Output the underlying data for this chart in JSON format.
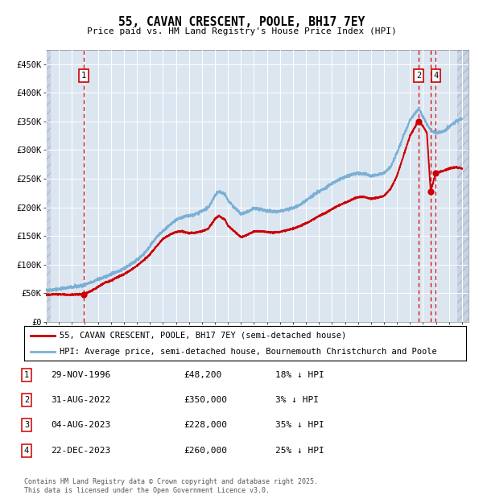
{
  "title": "55, CAVAN CRESCENT, POOLE, BH17 7EY",
  "subtitle": "Price paid vs. HM Land Registry's House Price Index (HPI)",
  "ylim": [
    0,
    475000
  ],
  "xlim_start": 1994.0,
  "xlim_end": 2026.5,
  "yticks": [
    0,
    50000,
    100000,
    150000,
    200000,
    250000,
    300000,
    350000,
    400000,
    450000
  ],
  "ytick_labels": [
    "£0",
    "£50K",
    "£100K",
    "£150K",
    "£200K",
    "£250K",
    "£300K",
    "£350K",
    "£400K",
    "£450K"
  ],
  "sale_color": "#cc0000",
  "hpi_color": "#7ab0d4",
  "plot_bg": "#dce6f1",
  "grid_color": "#ffffff",
  "hatch_bg": "#c8d4e3",
  "sale_points": [
    {
      "year": 1996.91,
      "price": 48200,
      "label": "1"
    },
    {
      "year": 2022.67,
      "price": 350000,
      "label": "2"
    },
    {
      "year": 2023.59,
      "price": 228000,
      "label": "3"
    },
    {
      "year": 2023.98,
      "price": 260000,
      "label": "4"
    }
  ],
  "label_box_positions": {
    "1": [
      1996.91,
      430000
    ],
    "2": [
      2022.67,
      430000
    ],
    "4": [
      2023.98,
      430000
    ]
  },
  "hpi_anchors": [
    [
      1994.0,
      55000
    ],
    [
      1994.5,
      56000
    ],
    [
      1995.0,
      57500
    ],
    [
      1995.5,
      59000
    ],
    [
      1996.0,
      60500
    ],
    [
      1996.5,
      62000
    ],
    [
      1997.0,
      65000
    ],
    [
      1997.5,
      69000
    ],
    [
      1998.0,
      74000
    ],
    [
      1998.5,
      78000
    ],
    [
      1999.0,
      83000
    ],
    [
      1999.5,
      88000
    ],
    [
      2000.0,
      93000
    ],
    [
      2000.5,
      100000
    ],
    [
      2001.0,
      108000
    ],
    [
      2001.5,
      118000
    ],
    [
      2002.0,
      132000
    ],
    [
      2002.5,
      148000
    ],
    [
      2003.0,
      158000
    ],
    [
      2003.5,
      168000
    ],
    [
      2004.0,
      178000
    ],
    [
      2004.5,
      183000
    ],
    [
      2005.0,
      185000
    ],
    [
      2005.5,
      188000
    ],
    [
      2006.0,
      193000
    ],
    [
      2006.5,
      200000
    ],
    [
      2007.0,
      220000
    ],
    [
      2007.3,
      228000
    ],
    [
      2007.8,
      222000
    ],
    [
      2008.0,
      212000
    ],
    [
      2008.5,
      200000
    ],
    [
      2009.0,
      188000
    ],
    [
      2009.5,
      192000
    ],
    [
      2010.0,
      198000
    ],
    [
      2010.5,
      197000
    ],
    [
      2011.0,
      194000
    ],
    [
      2011.5,
      192000
    ],
    [
      2012.0,
      193000
    ],
    [
      2012.5,
      196000
    ],
    [
      2013.0,
      199000
    ],
    [
      2013.5,
      204000
    ],
    [
      2014.0,
      212000
    ],
    [
      2014.5,
      220000
    ],
    [
      2015.0,
      228000
    ],
    [
      2015.5,
      234000
    ],
    [
      2016.0,
      242000
    ],
    [
      2016.5,
      248000
    ],
    [
      2017.0,
      253000
    ],
    [
      2017.5,
      257000
    ],
    [
      2018.0,
      260000
    ],
    [
      2018.5,
      258000
    ],
    [
      2019.0,
      255000
    ],
    [
      2019.5,
      257000
    ],
    [
      2020.0,
      260000
    ],
    [
      2020.5,
      270000
    ],
    [
      2021.0,
      295000
    ],
    [
      2021.5,
      325000
    ],
    [
      2022.0,
      352000
    ],
    [
      2022.5,
      368000
    ],
    [
      2022.67,
      372000
    ],
    [
      2023.0,
      358000
    ],
    [
      2023.3,
      345000
    ],
    [
      2023.6,
      335000
    ],
    [
      2024.0,
      330000
    ],
    [
      2024.5,
      332000
    ],
    [
      2025.0,
      340000
    ],
    [
      2025.5,
      350000
    ],
    [
      2026.0,
      355000
    ]
  ],
  "sale_anchors": [
    [
      1994.0,
      47500
    ],
    [
      1994.5,
      48000
    ],
    [
      1995.0,
      48000
    ],
    [
      1995.5,
      47800
    ],
    [
      1996.0,
      47500
    ],
    [
      1996.91,
      48200
    ],
    [
      1997.2,
      51000
    ],
    [
      1997.5,
      54000
    ],
    [
      1998.0,
      61000
    ],
    [
      1998.5,
      68000
    ],
    [
      1999.0,
      72000
    ],
    [
      1999.5,
      78000
    ],
    [
      2000.0,
      83000
    ],
    [
      2000.5,
      90000
    ],
    [
      2001.0,
      98000
    ],
    [
      2001.5,
      107000
    ],
    [
      2002.0,
      118000
    ],
    [
      2002.5,
      132000
    ],
    [
      2003.0,
      145000
    ],
    [
      2003.5,
      152000
    ],
    [
      2004.0,
      157000
    ],
    [
      2004.5,
      158000
    ],
    [
      2005.0,
      155000
    ],
    [
      2005.5,
      156000
    ],
    [
      2006.0,
      158000
    ],
    [
      2006.5,
      163000
    ],
    [
      2007.0,
      180000
    ],
    [
      2007.3,
      185000
    ],
    [
      2007.8,
      178000
    ],
    [
      2008.0,
      168000
    ],
    [
      2008.5,
      158000
    ],
    [
      2009.0,
      148000
    ],
    [
      2009.5,
      152000
    ],
    [
      2010.0,
      158000
    ],
    [
      2010.5,
      158000
    ],
    [
      2011.0,
      157000
    ],
    [
      2011.5,
      156000
    ],
    [
      2012.0,
      157000
    ],
    [
      2012.5,
      160000
    ],
    [
      2013.0,
      163000
    ],
    [
      2013.5,
      167000
    ],
    [
      2014.0,
      172000
    ],
    [
      2014.5,
      178000
    ],
    [
      2015.0,
      185000
    ],
    [
      2015.5,
      190000
    ],
    [
      2016.0,
      197000
    ],
    [
      2016.5,
      203000
    ],
    [
      2017.0,
      208000
    ],
    [
      2017.5,
      213000
    ],
    [
      2018.0,
      218000
    ],
    [
      2018.5,
      218000
    ],
    [
      2019.0,
      215000
    ],
    [
      2019.5,
      217000
    ],
    [
      2020.0,
      220000
    ],
    [
      2020.5,
      232000
    ],
    [
      2021.0,
      255000
    ],
    [
      2021.5,
      290000
    ],
    [
      2022.0,
      325000
    ],
    [
      2022.5,
      345000
    ],
    [
      2022.67,
      350000
    ],
    [
      2023.0,
      342000
    ],
    [
      2023.3,
      330000
    ],
    [
      2023.59,
      228000
    ],
    [
      2023.98,
      260000
    ],
    [
      2024.3,
      262000
    ],
    [
      2024.7,
      265000
    ],
    [
      2025.0,
      268000
    ],
    [
      2025.5,
      270000
    ],
    [
      2026.0,
      268000
    ]
  ],
  "legend_sale_label": "55, CAVAN CRESCENT, POOLE, BH17 7EY (semi-detached house)",
  "legend_hpi_label": "HPI: Average price, semi-detached house, Bournemouth Christchurch and Poole",
  "table_rows": [
    {
      "num": "1",
      "date": "29-NOV-1996",
      "price": "£48,200",
      "hpi": "18% ↓ HPI"
    },
    {
      "num": "2",
      "date": "31-AUG-2022",
      "price": "£350,000",
      "hpi": "3% ↓ HPI"
    },
    {
      "num": "3",
      "date": "04-AUG-2023",
      "price": "£228,000",
      "hpi": "35% ↓ HPI"
    },
    {
      "num": "4",
      "date": "22-DEC-2023",
      "price": "£260,000",
      "hpi": "25% ↓ HPI"
    }
  ],
  "footer": "Contains HM Land Registry data © Crown copyright and database right 2025.\nThis data is licensed under the Open Government Licence v3.0."
}
